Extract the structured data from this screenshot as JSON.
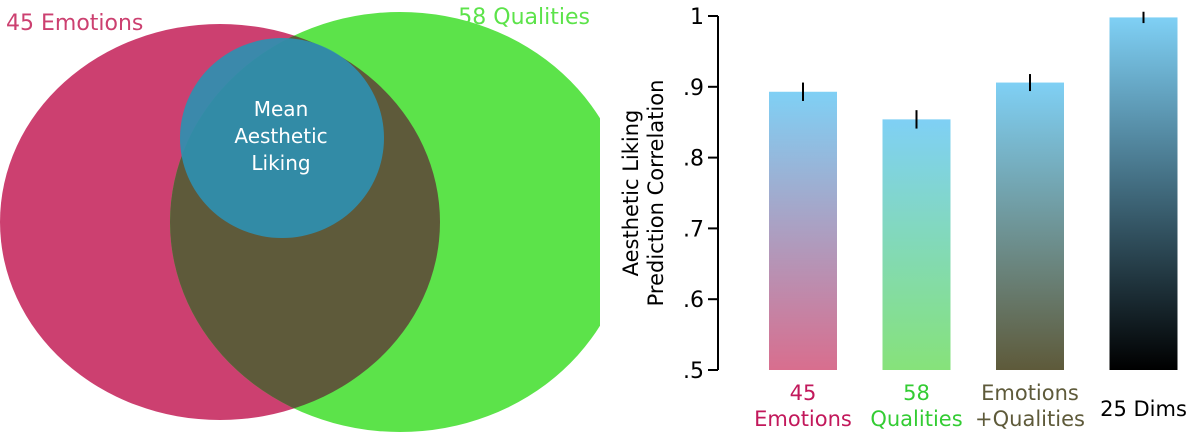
{
  "venn": {
    "left_set": {
      "label": "45 Emotions",
      "color": "#cc4070"
    },
    "right_set": {
      "label": "58 Qualities",
      "color": "#5ce34a"
    },
    "overlap_color": "#5e5a3a",
    "center_set": {
      "lines": [
        "Mean",
        "Aesthetic",
        "Liking"
      ],
      "color": "#2f8fb0"
    }
  },
  "chart_data": {
    "type": "bar",
    "ylabel_lines": [
      "Aesthetic Liking",
      "Prediction Correlation"
    ],
    "ylim": [
      0.5,
      1.0
    ],
    "yticks": [
      {
        "value": 0.5,
        "label": ".5"
      },
      {
        "value": 0.6,
        "label": ".6"
      },
      {
        "value": 0.7,
        "label": ".7"
      },
      {
        "value": 0.8,
        "label": ".8"
      },
      {
        "value": 0.9,
        "label": ".9"
      },
      {
        "value": 1.0,
        "label": "1"
      }
    ],
    "categories": [
      {
        "lines": [
          "45",
          "Emotions"
        ],
        "color": "#c2185b",
        "value": 0.893,
        "err": 0.013,
        "gradient_top": "#7fd0f5",
        "gradient_bottom": "#d86e8e"
      },
      {
        "lines": [
          "58",
          "Qualities"
        ],
        "color": "#33cc33",
        "value": 0.854,
        "err": 0.013,
        "gradient_top": "#7fd0f5",
        "gradient_bottom": "#86e27a"
      },
      {
        "lines": [
          "Emotions",
          "+Qualities"
        ],
        "color": "#5e5a3a",
        "value": 0.906,
        "err": 0.012,
        "gradient_top": "#7fd0f5",
        "gradient_bottom": "#5e5a3a"
      },
      {
        "lines": [
          "25 Dims"
        ],
        "color": "#000000",
        "value": 0.998,
        "err": 0.008,
        "gradient_top": "#7fd0f5",
        "gradient_bottom": "#000000"
      }
    ],
    "grid": false,
    "legend": "none"
  }
}
